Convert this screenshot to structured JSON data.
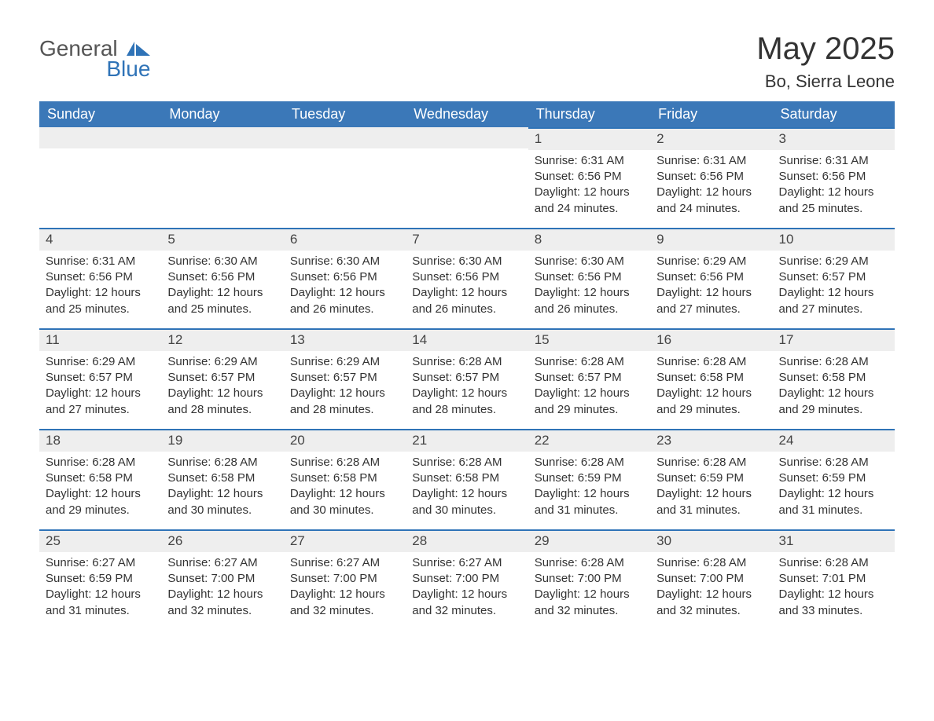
{
  "brand": {
    "general": "General",
    "blue": "Blue"
  },
  "title": "May 2025",
  "location": "Bo, Sierra Leone",
  "colors": {
    "header_bg": "#3b78b8",
    "header_text": "#ffffff",
    "daynum_bg": "#eeeeee",
    "daynum_border": "#2f73b7",
    "body_bg": "#ffffff",
    "text": "#333333",
    "logo_blue": "#2f73b7",
    "logo_gray": "#555555"
  },
  "typography": {
    "title_fontsize": 40,
    "location_fontsize": 22,
    "header_fontsize": 18,
    "body_fontsize": 15
  },
  "weekdays": [
    "Sunday",
    "Monday",
    "Tuesday",
    "Wednesday",
    "Thursday",
    "Friday",
    "Saturday"
  ],
  "labels": {
    "sunrise": "Sunrise: ",
    "sunset": "Sunset: ",
    "daylight_prefix": "Daylight: "
  },
  "structure": {
    "type": "calendar",
    "columns": 7,
    "rows": 5,
    "first_weekday_index": 4
  },
  "weeks": [
    [
      null,
      null,
      null,
      null,
      {
        "n": "1",
        "sunrise": "6:31 AM",
        "sunset": "6:56 PM",
        "daylight": "12 hours and 24 minutes."
      },
      {
        "n": "2",
        "sunrise": "6:31 AM",
        "sunset": "6:56 PM",
        "daylight": "12 hours and 24 minutes."
      },
      {
        "n": "3",
        "sunrise": "6:31 AM",
        "sunset": "6:56 PM",
        "daylight": "12 hours and 25 minutes."
      }
    ],
    [
      {
        "n": "4",
        "sunrise": "6:31 AM",
        "sunset": "6:56 PM",
        "daylight": "12 hours and 25 minutes."
      },
      {
        "n": "5",
        "sunrise": "6:30 AM",
        "sunset": "6:56 PM",
        "daylight": "12 hours and 25 minutes."
      },
      {
        "n": "6",
        "sunrise": "6:30 AM",
        "sunset": "6:56 PM",
        "daylight": "12 hours and 26 minutes."
      },
      {
        "n": "7",
        "sunrise": "6:30 AM",
        "sunset": "6:56 PM",
        "daylight": "12 hours and 26 minutes."
      },
      {
        "n": "8",
        "sunrise": "6:30 AM",
        "sunset": "6:56 PM",
        "daylight": "12 hours and 26 minutes."
      },
      {
        "n": "9",
        "sunrise": "6:29 AM",
        "sunset": "6:56 PM",
        "daylight": "12 hours and 27 minutes."
      },
      {
        "n": "10",
        "sunrise": "6:29 AM",
        "sunset": "6:57 PM",
        "daylight": "12 hours and 27 minutes."
      }
    ],
    [
      {
        "n": "11",
        "sunrise": "6:29 AM",
        "sunset": "6:57 PM",
        "daylight": "12 hours and 27 minutes."
      },
      {
        "n": "12",
        "sunrise": "6:29 AM",
        "sunset": "6:57 PM",
        "daylight": "12 hours and 28 minutes."
      },
      {
        "n": "13",
        "sunrise": "6:29 AM",
        "sunset": "6:57 PM",
        "daylight": "12 hours and 28 minutes."
      },
      {
        "n": "14",
        "sunrise": "6:28 AM",
        "sunset": "6:57 PM",
        "daylight": "12 hours and 28 minutes."
      },
      {
        "n": "15",
        "sunrise": "6:28 AM",
        "sunset": "6:57 PM",
        "daylight": "12 hours and 29 minutes."
      },
      {
        "n": "16",
        "sunrise": "6:28 AM",
        "sunset": "6:58 PM",
        "daylight": "12 hours and 29 minutes."
      },
      {
        "n": "17",
        "sunrise": "6:28 AM",
        "sunset": "6:58 PM",
        "daylight": "12 hours and 29 minutes."
      }
    ],
    [
      {
        "n": "18",
        "sunrise": "6:28 AM",
        "sunset": "6:58 PM",
        "daylight": "12 hours and 29 minutes."
      },
      {
        "n": "19",
        "sunrise": "6:28 AM",
        "sunset": "6:58 PM",
        "daylight": "12 hours and 30 minutes."
      },
      {
        "n": "20",
        "sunrise": "6:28 AM",
        "sunset": "6:58 PM",
        "daylight": "12 hours and 30 minutes."
      },
      {
        "n": "21",
        "sunrise": "6:28 AM",
        "sunset": "6:58 PM",
        "daylight": "12 hours and 30 minutes."
      },
      {
        "n": "22",
        "sunrise": "6:28 AM",
        "sunset": "6:59 PM",
        "daylight": "12 hours and 31 minutes."
      },
      {
        "n": "23",
        "sunrise": "6:28 AM",
        "sunset": "6:59 PM",
        "daylight": "12 hours and 31 minutes."
      },
      {
        "n": "24",
        "sunrise": "6:28 AM",
        "sunset": "6:59 PM",
        "daylight": "12 hours and 31 minutes."
      }
    ],
    [
      {
        "n": "25",
        "sunrise": "6:27 AM",
        "sunset": "6:59 PM",
        "daylight": "12 hours and 31 minutes."
      },
      {
        "n": "26",
        "sunrise": "6:27 AM",
        "sunset": "7:00 PM",
        "daylight": "12 hours and 32 minutes."
      },
      {
        "n": "27",
        "sunrise": "6:27 AM",
        "sunset": "7:00 PM",
        "daylight": "12 hours and 32 minutes."
      },
      {
        "n": "28",
        "sunrise": "6:27 AM",
        "sunset": "7:00 PM",
        "daylight": "12 hours and 32 minutes."
      },
      {
        "n": "29",
        "sunrise": "6:28 AM",
        "sunset": "7:00 PM",
        "daylight": "12 hours and 32 minutes."
      },
      {
        "n": "30",
        "sunrise": "6:28 AM",
        "sunset": "7:00 PM",
        "daylight": "12 hours and 32 minutes."
      },
      {
        "n": "31",
        "sunrise": "6:28 AM",
        "sunset": "7:01 PM",
        "daylight": "12 hours and 33 minutes."
      }
    ]
  ]
}
